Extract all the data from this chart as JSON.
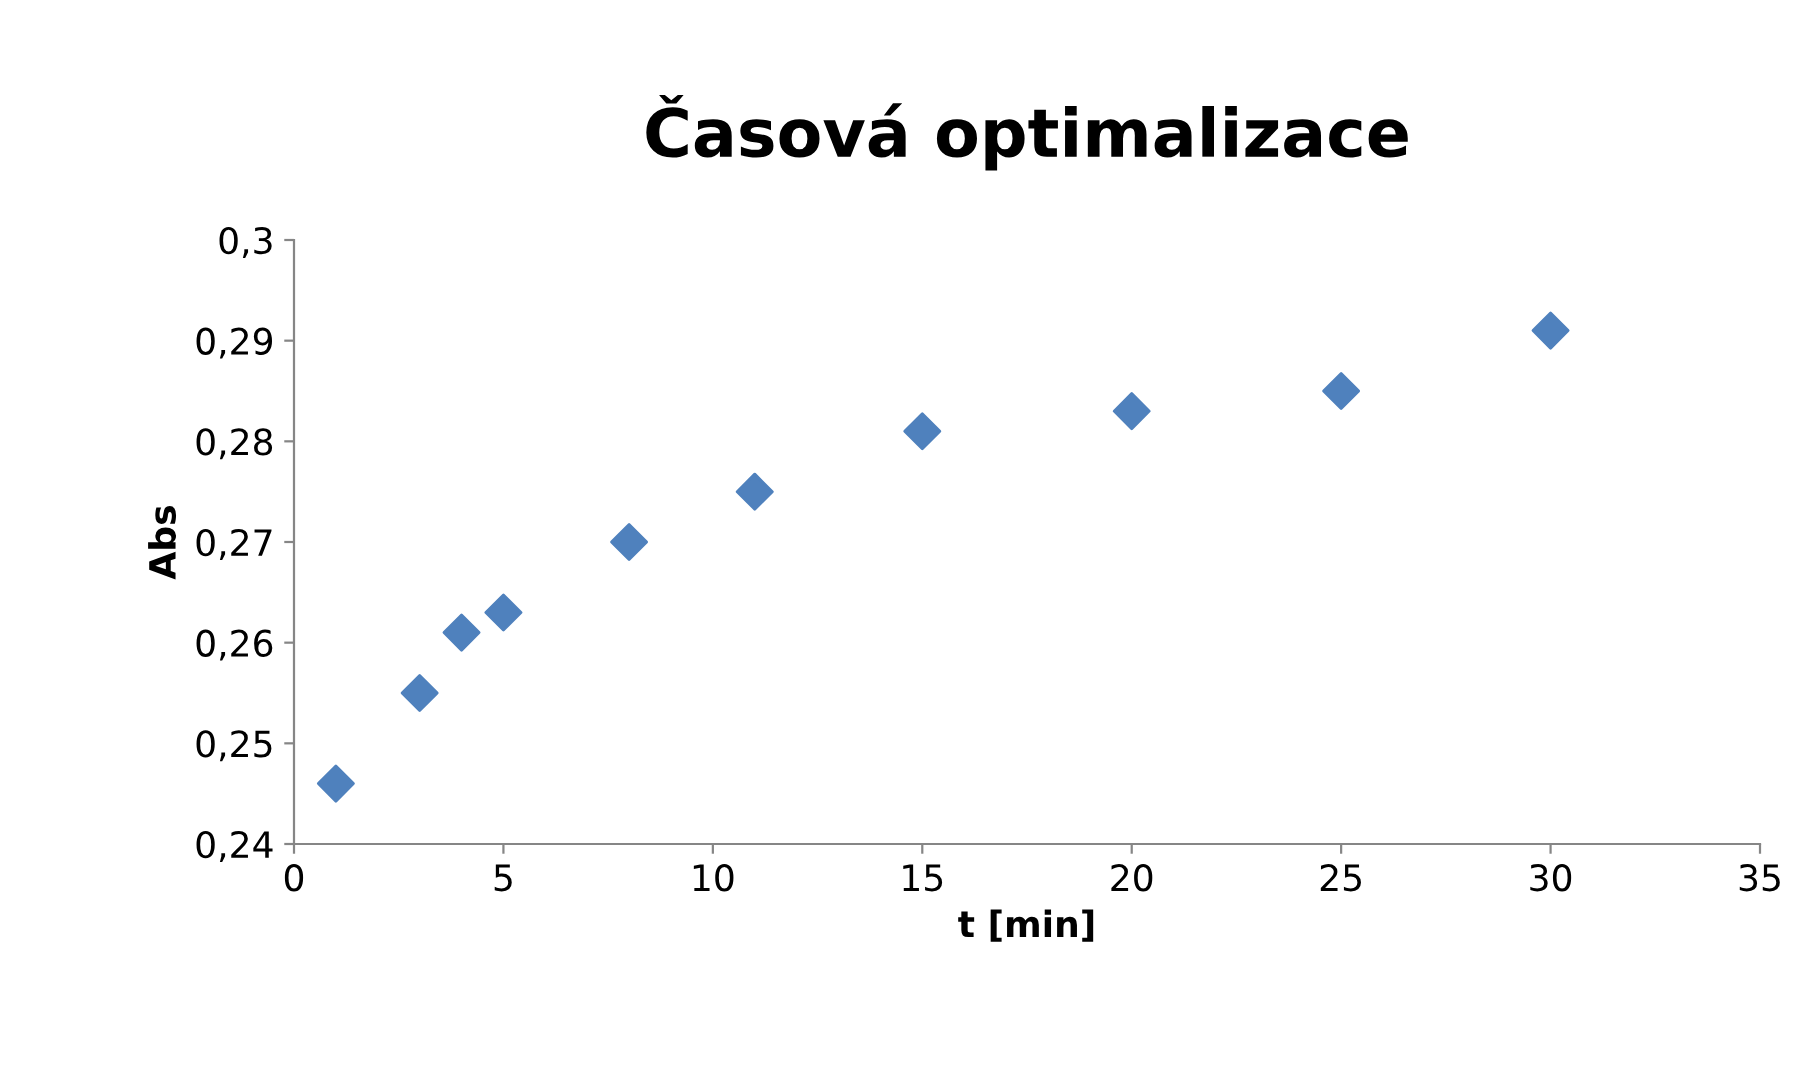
{
  "chart_data": {
    "type": "scatter",
    "title": "Časová optimalizace",
    "xlabel": "t [min]",
    "ylabel": "Abs",
    "x": [
      1,
      3,
      4,
      5,
      8,
      11,
      15,
      20,
      25,
      30
    ],
    "series": [
      {
        "color": "#4f81bd",
        "values": [
          0.246,
          0.255,
          0.261,
          0.263,
          0.27,
          0.275,
          0.281,
          0.283,
          0.285,
          0.291
        ]
      }
    ],
    "xlim": [
      0,
      35
    ],
    "xticks": [
      0,
      5,
      10,
      15,
      20,
      25,
      30,
      35
    ],
    "ylim": [
      0.24,
      0.3
    ],
    "yticks": [
      {
        "value": 0.24,
        "label": "0,24"
      },
      {
        "value": 0.25,
        "label": "0,25"
      },
      {
        "value": 0.26,
        "label": "0,26"
      },
      {
        "value": 0.27,
        "label": "0,27"
      },
      {
        "value": 0.28,
        "label": "0,28"
      },
      {
        "value": 0.29,
        "label": "0,29"
      },
      {
        "value": 0.3,
        "label": "0,3"
      }
    ],
    "marker": "diamond",
    "grid": false,
    "legend": false
  }
}
